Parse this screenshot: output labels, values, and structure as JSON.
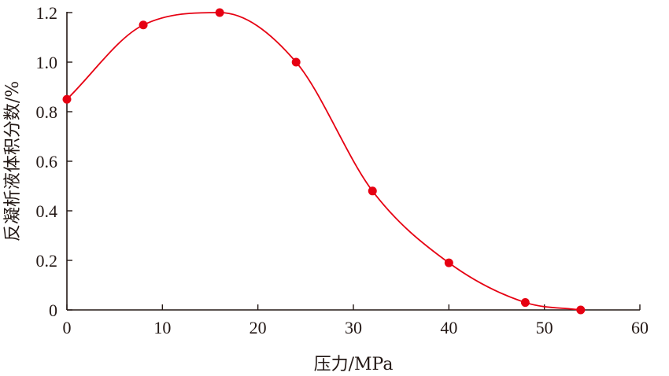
{
  "chart_data": {
    "type": "line",
    "xlabel": "压力/MPa",
    "ylabel": "反凝析液体积分数/%",
    "xlim": [
      0,
      60
    ],
    "ylim": [
      0,
      1.2
    ],
    "x_ticks": [
      0,
      10,
      20,
      30,
      40,
      50,
      60
    ],
    "x_tick_labels": [
      "0",
      "10",
      "20",
      "30",
      "40",
      "50",
      "60"
    ],
    "y_ticks": [
      0,
      0.2,
      0.4,
      0.6,
      0.8,
      1.0,
      1.2
    ],
    "y_tick_labels": [
      "0",
      "0.2",
      "0.4",
      "0.6",
      "0.8",
      "1.0",
      "1.2"
    ],
    "grid": false,
    "series": [
      {
        "color": "#e60012",
        "smooth": true,
        "marker": "circle",
        "x": [
          0,
          8,
          16,
          24,
          32,
          40,
          48,
          53.8
        ],
        "y": [
          0.85,
          1.15,
          1.2,
          1.0,
          0.48,
          0.19,
          0.03,
          0.0
        ]
      }
    ]
  }
}
